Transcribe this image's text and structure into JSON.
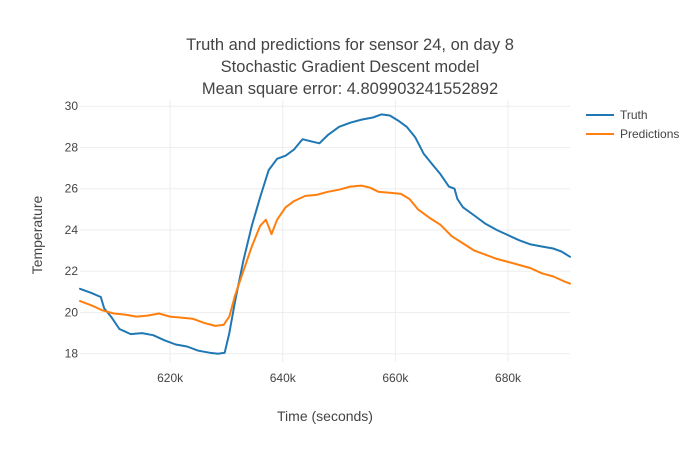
{
  "chart_data": {
    "type": "line",
    "title_lines": [
      "Truth and predictions for sensor 24, on day 8",
      "Stochastic Gradient Descent model",
      "Mean square error: 4.809903241552892"
    ],
    "xlabel": "Time (seconds)",
    "ylabel": "Temperature",
    "xlim": [
      604000,
      691000
    ],
    "ylim": [
      17.6,
      30.3
    ],
    "x_ticks": [
      620000,
      640000,
      660000,
      680000
    ],
    "x_tick_labels": [
      "620k",
      "640k",
      "660k",
      "680k"
    ],
    "y_ticks": [
      18,
      20,
      22,
      24,
      26,
      28,
      30
    ],
    "y_tick_labels": [
      "18",
      "20",
      "22",
      "24",
      "26",
      "28",
      "30"
    ],
    "grid": true,
    "legend_position": "top-right",
    "series": [
      {
        "name": "Truth",
        "color": "#1f77b4",
        "points": [
          [
            604000,
            21.15
          ],
          [
            606000,
            20.95
          ],
          [
            607700,
            20.75
          ],
          [
            608300,
            20.2
          ],
          [
            609500,
            19.8
          ],
          [
            611000,
            19.2
          ],
          [
            613000,
            18.95
          ],
          [
            615000,
            19.0
          ],
          [
            617000,
            18.9
          ],
          [
            619000,
            18.65
          ],
          [
            621000,
            18.45
          ],
          [
            623000,
            18.35
          ],
          [
            625000,
            18.15
          ],
          [
            627000,
            18.05
          ],
          [
            628500,
            18.0
          ],
          [
            629700,
            18.05
          ],
          [
            630500,
            19.0
          ],
          [
            631500,
            20.5
          ],
          [
            633000,
            22.5
          ],
          [
            634500,
            24.2
          ],
          [
            636000,
            25.6
          ],
          [
            637500,
            26.9
          ],
          [
            639000,
            27.45
          ],
          [
            640500,
            27.6
          ],
          [
            642000,
            27.9
          ],
          [
            643500,
            28.4
          ],
          [
            645000,
            28.3
          ],
          [
            646500,
            28.2
          ],
          [
            648000,
            28.6
          ],
          [
            650000,
            29.0
          ],
          [
            652000,
            29.2
          ],
          [
            654000,
            29.35
          ],
          [
            656000,
            29.45
          ],
          [
            657500,
            29.6
          ],
          [
            659000,
            29.55
          ],
          [
            660500,
            29.3
          ],
          [
            662000,
            29.0
          ],
          [
            663500,
            28.5
          ],
          [
            665000,
            27.7
          ],
          [
            666500,
            27.2
          ],
          [
            668000,
            26.7
          ],
          [
            669500,
            26.1
          ],
          [
            670500,
            26.0
          ],
          [
            671000,
            25.5
          ],
          [
            672000,
            25.1
          ],
          [
            674000,
            24.7
          ],
          [
            676000,
            24.3
          ],
          [
            678000,
            24.0
          ],
          [
            680000,
            23.75
          ],
          [
            682000,
            23.5
          ],
          [
            684000,
            23.3
          ],
          [
            686000,
            23.2
          ],
          [
            688000,
            23.1
          ],
          [
            689500,
            22.95
          ],
          [
            691000,
            22.7
          ]
        ]
      },
      {
        "name": "Predictions",
        "color": "#ff7f0e",
        "points": [
          [
            604000,
            20.55
          ],
          [
            606000,
            20.35
          ],
          [
            608000,
            20.1
          ],
          [
            610000,
            19.95
          ],
          [
            612000,
            19.9
          ],
          [
            614000,
            19.8
          ],
          [
            616000,
            19.85
          ],
          [
            618000,
            19.95
          ],
          [
            620000,
            19.8
          ],
          [
            622000,
            19.75
          ],
          [
            624000,
            19.7
          ],
          [
            626000,
            19.5
          ],
          [
            628000,
            19.35
          ],
          [
            629500,
            19.4
          ],
          [
            630500,
            19.8
          ],
          [
            631500,
            20.8
          ],
          [
            633000,
            22.0
          ],
          [
            634500,
            23.2
          ],
          [
            636000,
            24.2
          ],
          [
            637000,
            24.5
          ],
          [
            638000,
            23.8
          ],
          [
            639000,
            24.5
          ],
          [
            640500,
            25.1
          ],
          [
            642000,
            25.4
          ],
          [
            644000,
            25.65
          ],
          [
            646000,
            25.7
          ],
          [
            648000,
            25.85
          ],
          [
            650000,
            25.95
          ],
          [
            652000,
            26.1
          ],
          [
            654000,
            26.15
          ],
          [
            655500,
            26.05
          ],
          [
            657000,
            25.85
          ],
          [
            659000,
            25.8
          ],
          [
            661000,
            25.75
          ],
          [
            662500,
            25.5
          ],
          [
            664000,
            25.0
          ],
          [
            666000,
            24.6
          ],
          [
            668000,
            24.25
          ],
          [
            670000,
            23.7
          ],
          [
            672000,
            23.35
          ],
          [
            674000,
            23.0
          ],
          [
            676000,
            22.8
          ],
          [
            678000,
            22.6
          ],
          [
            680000,
            22.45
          ],
          [
            682000,
            22.3
          ],
          [
            684000,
            22.15
          ],
          [
            686000,
            21.9
          ],
          [
            688000,
            21.75
          ],
          [
            690000,
            21.5
          ],
          [
            691000,
            21.4
          ]
        ]
      }
    ]
  }
}
